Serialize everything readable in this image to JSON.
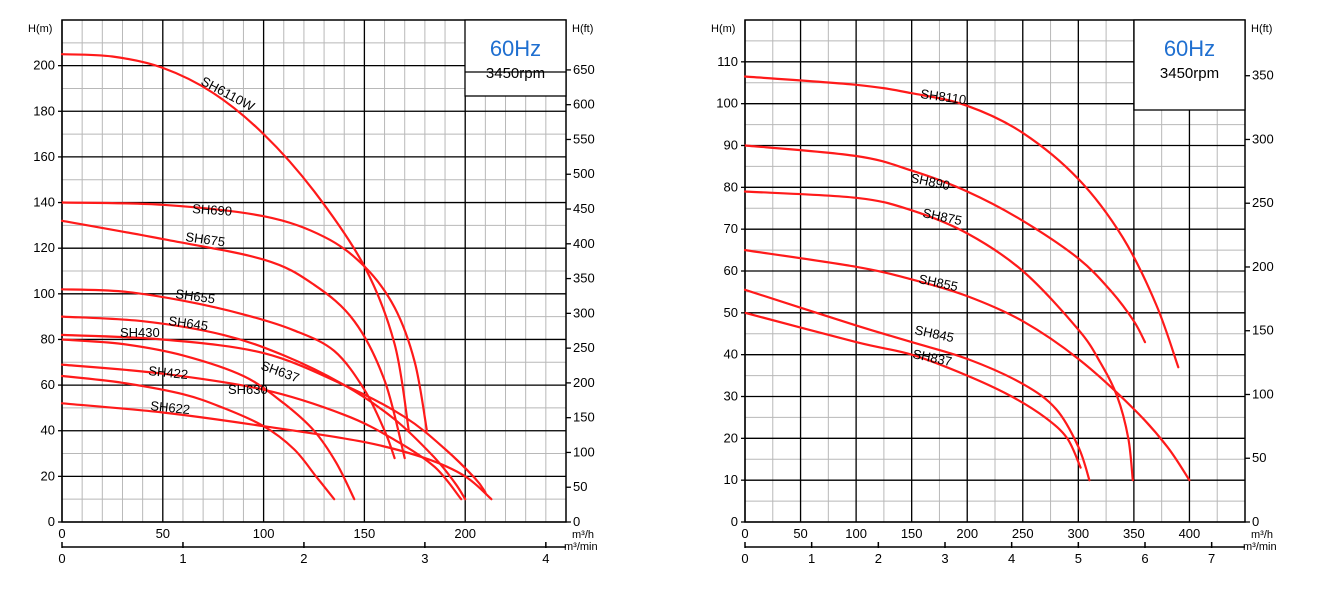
{
  "colors": {
    "curve": "#ff1a1a",
    "major_grid": "#000000",
    "minor_grid": "#b8b8b8",
    "freq_text": "#1f6fd0"
  },
  "chart_data": [
    {
      "type": "line",
      "title": "",
      "freq_label": "60Hz",
      "rpm_label": "3450rpm",
      "ylabel": "H(m)",
      "ylabel_right": "H(ft)",
      "xlabel": "m³/h",
      "xlabel_secondary": "m³/min",
      "xlim": [
        0,
        250
      ],
      "ylim": [
        0,
        220
      ],
      "x_ticks": [
        0,
        50,
        100,
        150,
        200
      ],
      "y_ticks": [
        0,
        20,
        40,
        60,
        80,
        100,
        120,
        140,
        160,
        180,
        200
      ],
      "y2_ticks": [
        0,
        50,
        100,
        150,
        200,
        250,
        300,
        350,
        400,
        450,
        500,
        550,
        600,
        650
      ],
      "x2_ticks": [
        0,
        1,
        2,
        3,
        4
      ],
      "grid": true,
      "series": [
        {
          "name": "SH6110W",
          "x": [
            0,
            25,
            50,
            75,
            100,
            125,
            150,
            165,
            172
          ],
          "y": [
            205,
            204,
            199,
            188,
            170,
            145,
            112,
            78,
            40
          ]
        },
        {
          "name": "SH690",
          "x": [
            0,
            50,
            100,
            130,
            150,
            165,
            175,
            181
          ],
          "y": [
            140,
            139,
            134,
            125,
            112,
            94,
            70,
            40
          ]
        },
        {
          "name": "SH675",
          "x": [
            0,
            50,
            100,
            125,
            145,
            160,
            170
          ],
          "y": [
            132,
            124,
            115,
            104,
            88,
            62,
            28
          ]
        },
        {
          "name": "SH655",
          "x": [
            0,
            30,
            60,
            90,
            115,
            135,
            150,
            160,
            165
          ],
          "y": [
            102,
            101,
            97,
            91,
            84,
            75,
            58,
            40,
            28
          ]
        },
        {
          "name": "SH645",
          "x": [
            0,
            40,
            80,
            110,
            140,
            165,
            185,
            195,
            200
          ],
          "y": [
            90,
            88,
            82,
            73,
            60,
            45,
            28,
            17,
            10
          ]
        },
        {
          "name": "SH430",
          "x": [
            0,
            30,
            60,
            90,
            110,
            125,
            136,
            145
          ],
          "y": [
            80,
            78,
            73,
            64,
            52,
            40,
            26,
            10
          ]
        },
        {
          "name": "SH637",
          "x": [
            0,
            50,
            100,
            140,
            170,
            190,
            205,
            210
          ],
          "y": [
            82,
            80,
            74,
            60,
            46,
            32,
            19,
            13
          ]
        },
        {
          "name": "SH630",
          "x": [
            0,
            50,
            100,
            140,
            165,
            185,
            198
          ],
          "y": [
            69,
            65,
            58,
            47,
            36,
            24,
            10
          ]
        },
        {
          "name": "SH422",
          "x": [
            0,
            30,
            60,
            80,
            100,
            115,
            126,
            135
          ],
          "y": [
            64,
            61,
            56,
            50,
            42,
            32,
            20,
            10
          ]
        },
        {
          "name": "SH622",
          "x": [
            0,
            50,
            100,
            150,
            180,
            200,
            213
          ],
          "y": [
            52,
            48,
            42,
            35,
            28,
            20,
            10
          ]
        }
      ]
    },
    {
      "type": "line",
      "title": "",
      "freq_label": "60Hz",
      "rpm_label": "3450rpm",
      "ylabel": "H(m)",
      "ylabel_right": "H(ft)",
      "xlabel": "m³/h",
      "xlabel_secondary": "m³/min",
      "xlim": [
        0,
        450
      ],
      "ylim": [
        0,
        120
      ],
      "x_ticks": [
        0,
        50,
        100,
        150,
        200,
        250,
        300,
        350,
        400
      ],
      "y_ticks": [
        0,
        10,
        20,
        30,
        40,
        50,
        60,
        70,
        80,
        90,
        100,
        110
      ],
      "y2_ticks": [
        0,
        50,
        100,
        150,
        200,
        250,
        300,
        350
      ],
      "x2_ticks": [
        0,
        1,
        2,
        3,
        4,
        5,
        6,
        7
      ],
      "grid": true,
      "series": [
        {
          "name": "SH8110",
          "x": [
            0,
            100,
            150,
            200,
            250,
            300,
            340,
            370,
            390
          ],
          "y": [
            106.5,
            104.5,
            102.5,
            99.5,
            93,
            82,
            68,
            52,
            37
          ]
        },
        {
          "name": "SH890",
          "x": [
            0,
            100,
            150,
            200,
            250,
            300,
            330,
            350,
            360
          ],
          "y": [
            90,
            87.5,
            84,
            79,
            72,
            63,
            55,
            48,
            43
          ]
        },
        {
          "name": "SH875",
          "x": [
            0,
            100,
            150,
            200,
            250,
            300,
            320,
            335,
            345,
            349
          ],
          "y": [
            79,
            77.5,
            74.5,
            69,
            60,
            46,
            38,
            30,
            20,
            10
          ]
        },
        {
          "name": "SH855",
          "x": [
            0,
            100,
            150,
            200,
            250,
            300,
            350,
            380,
            400
          ],
          "y": [
            65,
            61,
            58,
            54,
            48,
            39,
            27,
            18,
            10
          ]
        },
        {
          "name": "SH845",
          "x": [
            0,
            100,
            150,
            200,
            250,
            280,
            300,
            310
          ],
          "y": [
            55.5,
            47,
            43,
            39,
            33,
            27,
            18,
            10
          ]
        },
        {
          "name": "SH837",
          "x": [
            0,
            100,
            150,
            200,
            240,
            270,
            290,
            302
          ],
          "y": [
            50,
            43,
            40,
            35,
            30,
            25,
            20,
            13
          ]
        }
      ]
    }
  ]
}
